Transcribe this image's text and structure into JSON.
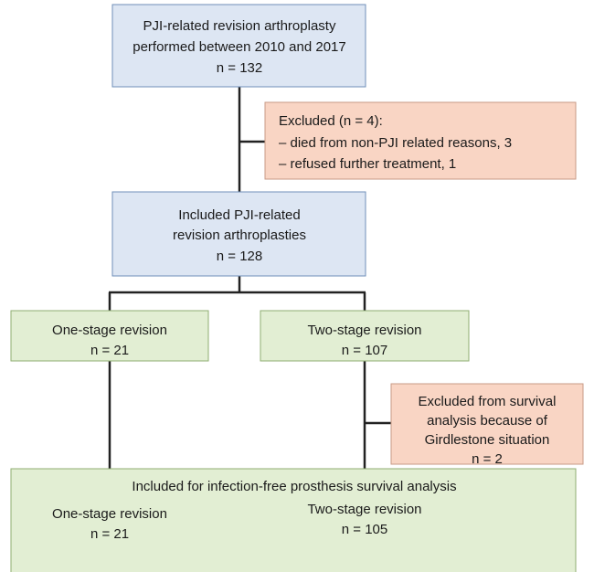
{
  "nodes": [
    {
      "lines": [
        "PJI-related revision arthroplasty",
        "performed between 2010 and 2017",
        "n = 132"
      ]
    },
    {
      "lines": [
        "Excluded (n = 4):",
        "– died from non-PJI related reasons, 3",
        "– refused further treatment, 1"
      ]
    },
    {
      "lines": [
        "Included PJI-related",
        "revision arthroplasties",
        "n = 128"
      ]
    },
    {
      "lines": [
        "One-stage revision",
        "n = 21"
      ]
    },
    {
      "lines": [
        "Two-stage revision",
        "n = 107"
      ]
    },
    {
      "lines": [
        "Excluded from survival",
        "analysis because of",
        "Girdlestone situation",
        "n = 2"
      ]
    },
    {
      "lines": [
        "Included for infection-free prosthesis survival analysis",
        "One-stage revision",
        "n = 21",
        "Two-stage revision",
        "n = 105"
      ]
    }
  ]
}
